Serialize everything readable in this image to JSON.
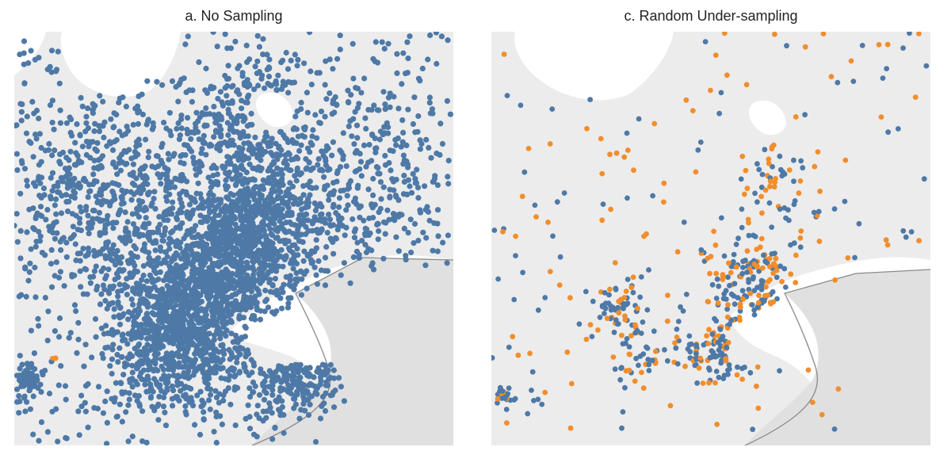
{
  "panels": [
    {
      "title": "a. No Sampling"
    },
    {
      "title": "c. Random Under-sampling"
    }
  ],
  "colors": {
    "background": "#ffffff",
    "land": "#ececec",
    "water": "#ffffff",
    "land_us": "#e0e0e0",
    "border": "#8a8a8a",
    "majority_class": "#4e79a7",
    "minority_class": "#f28e2b"
  }
}
